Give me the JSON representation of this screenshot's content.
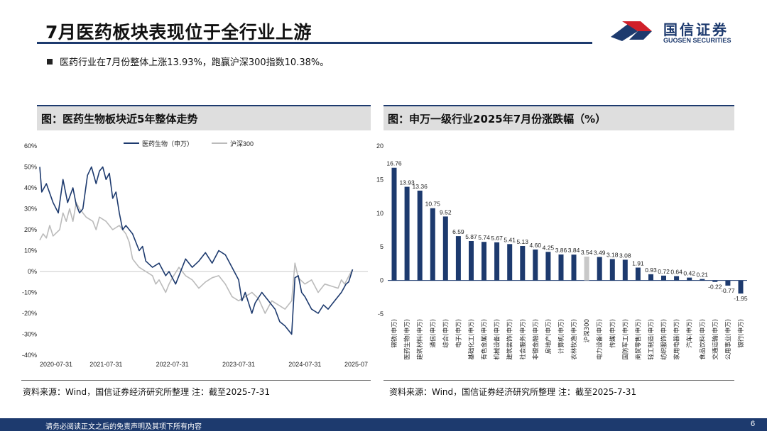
{
  "header": {
    "title": "7月医药板块表现位于全行业上游",
    "logo_cn": "国信证券",
    "logo_en": "GUOSEN SECURITIES"
  },
  "summary": "医药行业在7月份整体上涨13.93%，跑赢沪深300指数10.38%。",
  "left_panel": {
    "title": "图：医药生物板块近5年整体走势",
    "source": "资料来源：Wind，国信证券经济研究所整理 注：截至2025-7-31"
  },
  "right_panel": {
    "title": "图：申万一级行业2025年7月份涨跌幅（%）",
    "source": "资料来源：Wind，国信证券经济研究所整理 注：截至2025-7-31"
  },
  "footer": {
    "disclaimer": "请务必阅读正文之后的免责声明及其项下所有内容",
    "page": "6"
  },
  "colors": {
    "navy": "#1d3a6e",
    "gray_series": "#bbbbbb",
    "highlight_bar": "#c8c8c8",
    "logo_red": "#d0202a"
  },
  "chart_data": [
    {
      "type": "line",
      "x_ticks": [
        "2020-07-31",
        "2021-07-31",
        "2022-07-31",
        "2023-07-31",
        "2024-07-31",
        "2025-07"
      ],
      "y_ticks": [
        "60%",
        "50%",
        "40%",
        "30%",
        "20%",
        "10%",
        "0%",
        "-10%",
        "-20%",
        "-30%",
        "-40%"
      ],
      "ylim": [
        -40,
        60
      ],
      "grid": false,
      "legend_position": "top-center",
      "series": [
        {
          "name": "医药生物（申万）",
          "color": "#1d3a6e",
          "points": [
            [
              0,
              50
            ],
            [
              0.03,
              38
            ],
            [
              0.1,
              42
            ],
            [
              0.2,
              33
            ],
            [
              0.28,
              28
            ],
            [
              0.35,
              44
            ],
            [
              0.42,
              33
            ],
            [
              0.5,
              40
            ],
            [
              0.55,
              32
            ],
            [
              0.6,
              28
            ],
            [
              0.65,
              30
            ],
            [
              0.72,
              46
            ],
            [
              0.78,
              50
            ],
            [
              0.85,
              42
            ],
            [
              0.9,
              48
            ],
            [
              0.95,
              50
            ],
            [
              1.0,
              44
            ],
            [
              1.05,
              47
            ],
            [
              1.1,
              35
            ],
            [
              1.15,
              38
            ],
            [
              1.2,
              28
            ],
            [
              1.25,
              20
            ],
            [
              1.3,
              22
            ],
            [
              1.4,
              18
            ],
            [
              1.5,
              10
            ],
            [
              1.55,
              12
            ],
            [
              1.6,
              5
            ],
            [
              1.7,
              2
            ],
            [
              1.8,
              4
            ],
            [
              1.9,
              -2
            ],
            [
              1.95,
              0
            ],
            [
              2.05,
              -6
            ],
            [
              2.1,
              -2
            ],
            [
              2.2,
              6
            ],
            [
              2.3,
              2
            ],
            [
              2.4,
              5
            ],
            [
              2.5,
              9
            ],
            [
              2.6,
              4
            ],
            [
              2.7,
              10
            ],
            [
              2.8,
              8
            ],
            [
              2.9,
              2
            ],
            [
              3.0,
              -4
            ],
            [
              3.05,
              -14
            ],
            [
              3.1,
              -10
            ],
            [
              3.2,
              -20
            ],
            [
              3.25,
              -15
            ],
            [
              3.35,
              -10
            ],
            [
              3.45,
              -14
            ],
            [
              3.55,
              -18
            ],
            [
              3.62,
              -24
            ],
            [
              3.7,
              -26
            ],
            [
              3.75,
              -28
            ],
            [
              3.8,
              -30
            ],
            [
              3.85,
              -3
            ],
            [
              3.9,
              -2
            ],
            [
              3.95,
              -10
            ],
            [
              4.0,
              -12
            ],
            [
              4.1,
              -18
            ],
            [
              4.2,
              -20
            ],
            [
              4.28,
              -16
            ],
            [
              4.35,
              -18
            ],
            [
              4.45,
              -14
            ],
            [
              4.55,
              -10
            ],
            [
              4.62,
              -6
            ],
            [
              4.66,
              -5
            ],
            [
              4.7,
              -1
            ],
            [
              4.72,
              1
            ]
          ]
        },
        {
          "name": "沪深300",
          "color": "#bbbbbb",
          "points": [
            [
              0,
              15
            ],
            [
              0.05,
              18
            ],
            [
              0.1,
              16
            ],
            [
              0.15,
              22
            ],
            [
              0.2,
              17
            ],
            [
              0.3,
              20
            ],
            [
              0.35,
              28
            ],
            [
              0.4,
              24
            ],
            [
              0.45,
              30
            ],
            [
              0.5,
              24
            ],
            [
              0.55,
              33
            ],
            [
              0.6,
              30
            ],
            [
              0.7,
              26
            ],
            [
              0.8,
              24
            ],
            [
              0.85,
              20
            ],
            [
              0.9,
              26
            ],
            [
              1.0,
              24
            ],
            [
              1.1,
              20
            ],
            [
              1.2,
              22
            ],
            [
              1.3,
              18
            ],
            [
              1.35,
              14
            ],
            [
              1.4,
              6
            ],
            [
              1.45,
              4
            ],
            [
              1.5,
              2
            ],
            [
              1.6,
              0
            ],
            [
              1.7,
              -2
            ],
            [
              1.75,
              -6
            ],
            [
              1.8,
              -4
            ],
            [
              1.9,
              -10
            ],
            [
              1.95,
              -6
            ],
            [
              2.0,
              -3
            ],
            [
              2.1,
              2
            ],
            [
              2.2,
              -2
            ],
            [
              2.3,
              -4
            ],
            [
              2.4,
              -8
            ],
            [
              2.5,
              -5
            ],
            [
              2.6,
              -3
            ],
            [
              2.7,
              -2
            ],
            [
              2.8,
              -6
            ],
            [
              2.9,
              -12
            ],
            [
              3.0,
              -14
            ],
            [
              3.1,
              -12
            ],
            [
              3.2,
              -10
            ],
            [
              3.3,
              -13
            ],
            [
              3.4,
              -20
            ],
            [
              3.5,
              -14
            ],
            [
              3.6,
              -16
            ],
            [
              3.7,
              -18
            ],
            [
              3.8,
              -14
            ],
            [
              3.85,
              4
            ],
            [
              3.9,
              -3
            ],
            [
              4.0,
              -6
            ],
            [
              4.1,
              -4
            ],
            [
              4.2,
              -10
            ],
            [
              4.3,
              -6
            ],
            [
              4.4,
              -7
            ],
            [
              4.5,
              -8
            ],
            [
              4.55,
              -4
            ],
            [
              4.6,
              -6
            ],
            [
              4.65,
              -3
            ],
            [
              4.7,
              0
            ],
            [
              4.72,
              1
            ]
          ]
        }
      ]
    },
    {
      "type": "bar",
      "ylim": [
        -5,
        20
      ],
      "y_ticks": [
        20,
        15,
        10,
        5,
        0,
        -5
      ],
      "categories": [
        "钢铁(申万)",
        "医药生物(申万)",
        "建筑材料(申万)",
        "通信(申万)",
        "综合(申万)",
        "电子(申万)",
        "基础化工(申万)",
        "有色金属(申万)",
        "机械设备(申万)",
        "建筑装饰(申万)",
        "社会服务(申万)",
        "非银金融(申万)",
        "房地产(申万)",
        "计算机(申万)",
        "农林牧渔(申万)",
        "沪深300",
        "电力设备(申万)",
        "传媒(申万)",
        "国防军工(申万)",
        "商贸零售(申万)",
        "轻工制造(申万)",
        "纺织服饰(申万)",
        "家用电器(申万)",
        "汽车(申万)",
        "食品饮料(申万)",
        "交通运输(申万)",
        "公用事业(申万)",
        "银行(申万)"
      ],
      "values": [
        16.76,
        13.93,
        13.36,
        10.75,
        9.52,
        6.59,
        5.87,
        5.74,
        5.67,
        5.41,
        5.13,
        4.6,
        4.25,
        3.86,
        3.84,
        3.54,
        3.49,
        3.18,
        3.08,
        1.91,
        0.93,
        0.72,
        0.64,
        0.42,
        0.21,
        -0.22,
        -0.77,
        -1.95
      ],
      "labels": [
        "16.76",
        "13.93",
        "13.36",
        "10.75",
        "9.52",
        "6.59",
        "5.87",
        "5.74",
        "5.67",
        "5.41",
        "5.13",
        "4.60",
        "4.25",
        "3.86",
        "3.84",
        "3.54",
        "3.49",
        "3.18",
        "3.08",
        "1.91",
        "0.93",
        "0.72",
        "0.64",
        "0.42",
        "0.21",
        "-0.22",
        "-0.77",
        "-1.95"
      ],
      "highlight_category": "沪深300"
    }
  ]
}
